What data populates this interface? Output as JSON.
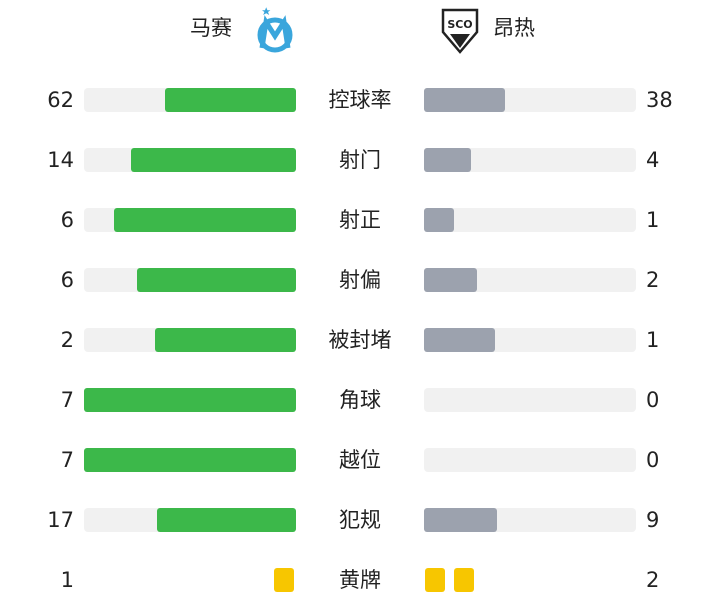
{
  "header": {
    "home": "马赛",
    "away": "昂热",
    "away_badge": "SCO"
  },
  "stats": [
    {
      "label": "控球率",
      "home": 62,
      "away": 38
    },
    {
      "label": "射门",
      "home": 14,
      "away": 4
    },
    {
      "label": "射正",
      "home": 6,
      "away": 1
    },
    {
      "label": "射偏",
      "home": 6,
      "away": 2
    },
    {
      "label": "被封堵",
      "home": 2,
      "away": 1
    },
    {
      "label": "角球",
      "home": 7,
      "away": 0
    },
    {
      "label": "越位",
      "home": 7,
      "away": 0
    },
    {
      "label": "犯规",
      "home": 17,
      "away": 9
    }
  ],
  "cards": {
    "label": "黄牌",
    "home": 1,
    "away": 2
  },
  "colors": {
    "home": "#3cb84a",
    "away": "#9ca2ae",
    "track": "#f1f1f1",
    "card": "#f7c600"
  }
}
